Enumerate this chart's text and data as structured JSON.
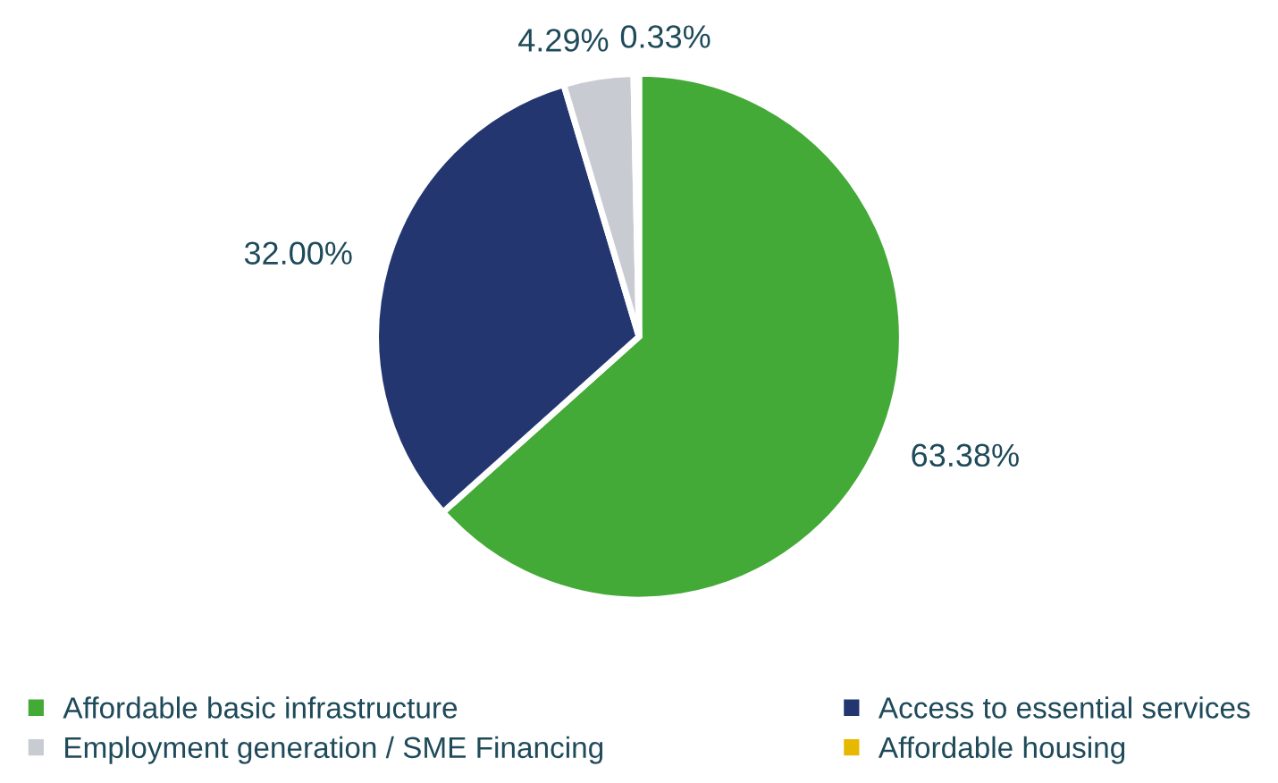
{
  "chart_data": {
    "type": "pie",
    "categories": [
      "Affordable basic infrastructure",
      "Access to essential services",
      "Employment generation / SME Financing",
      "Affordable housing"
    ],
    "values": [
      63.38,
      32.0,
      4.29,
      0.33
    ],
    "value_labels": [
      "63.38%",
      "32.00%",
      "4.29%",
      "0.33%"
    ],
    "colors": [
      "#43a937",
      "#233670",
      "#c8cbd2",
      "#e6b800"
    ],
    "legend": "bottom"
  }
}
